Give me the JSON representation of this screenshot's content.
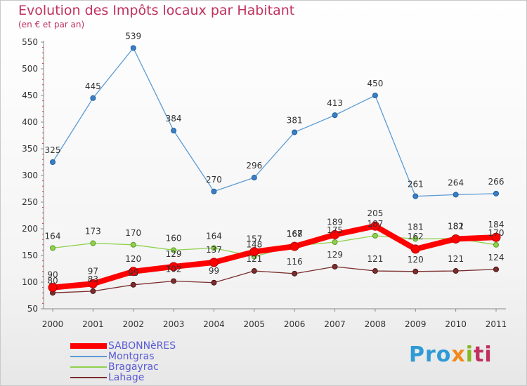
{
  "title": "Evolution des Impôts locaux par Habitant",
  "subtitle": "(en € et par an)",
  "logo": [
    "Pro",
    "x",
    "i",
    "ti"
  ],
  "chart_data": {
    "type": "line",
    "title": "Evolution des Impôts locaux par Habitant",
    "subtitle": "(en € et par an)",
    "categories": [
      "2000",
      "2001",
      "2002",
      "2003",
      "2004",
      "2005",
      "2006",
      "2007",
      "2008",
      "2009",
      "2010",
      "2011"
    ],
    "ylim": [
      50,
      550
    ],
    "yticks": [
      50,
      100,
      150,
      200,
      250,
      300,
      350,
      400,
      450,
      500,
      550
    ],
    "grid": false,
    "legend_position": "bottom-left",
    "series": [
      {
        "name": "SABONNèRES",
        "color": "#ff0000",
        "values": [
          90,
          97,
          120,
          129,
          137,
          157,
          167,
          189,
          205,
          162,
          181,
          184
        ],
        "labels": [
          "90",
          "97",
          "120",
          "129",
          "137",
          "157",
          "167",
          "189",
          "205",
          "162",
          "181",
          "184"
        ]
      },
      {
        "name": "Montgras",
        "color": "#5b9bd5",
        "values": [
          325,
          445,
          539,
          384,
          270,
          296,
          381,
          413,
          450,
          261,
          264,
          266
        ],
        "labels": [
          "325",
          "445",
          "539",
          "384",
          "270",
          "296",
          "381",
          "413",
          "450",
          "261",
          "264",
          "266"
        ]
      },
      {
        "name": "Bragayrac",
        "color": "#8fd14f",
        "values": [
          164,
          173,
          170,
          160,
          164,
          148,
          168,
          175,
          187,
          181,
          182,
          170
        ],
        "labels": [
          "164",
          "173",
          "170",
          "160",
          "164",
          "148",
          "168",
          "175",
          "187",
          "181",
          "182",
          "170"
        ]
      },
      {
        "name": "Lahage",
        "color": "#7b2d2d",
        "values": [
          80,
          83,
          95,
          102,
          99,
          121,
          116,
          129,
          121,
          120,
          121,
          124
        ],
        "labels": [
          "80",
          "83",
          "95",
          "102",
          "99",
          "121",
          "116",
          "129",
          "121",
          "120",
          "121",
          "124"
        ]
      }
    ]
  }
}
